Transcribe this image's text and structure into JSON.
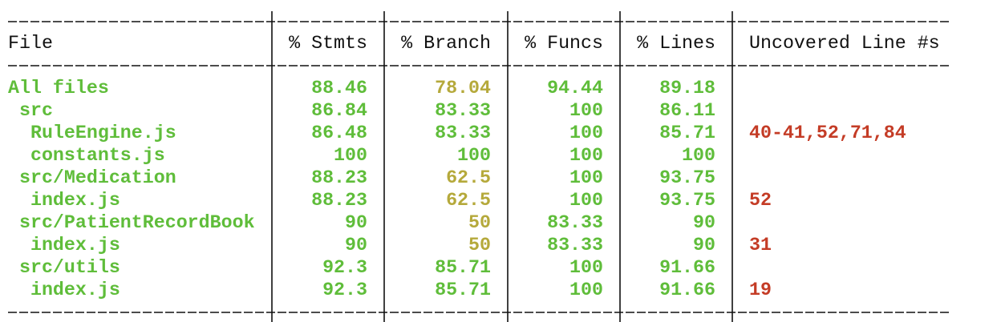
{
  "table": {
    "header": [
      "File",
      "% Stmts",
      "% Branch",
      "% Funcs",
      "% Lines",
      "Uncovered Line #s"
    ],
    "rows": [
      [
        "All files",
        88.46,
        78.04,
        94.44,
        89.18
      ],
      [
        " src",
        86.84,
        83.33,
        100,
        86.11
      ],
      [
        "  RuleEngine.js",
        86.48,
        83.33,
        100,
        85.71,
        "40-41,52,71,84"
      ],
      [
        "  constants.js",
        100,
        100,
        100,
        100
      ],
      [
        " src/Medication",
        88.23,
        62.5,
        100,
        93.75
      ],
      [
        "  index.js",
        88.23,
        62.5,
        100,
        93.75,
        "52"
      ],
      [
        " src/PatientRecordBook",
        90,
        50,
        83.33,
        90
      ],
      [
        "  index.js",
        90,
        50,
        83.33,
        90,
        "31"
      ],
      [
        " src/utils",
        92.3,
        85.71,
        100,
        91.66
      ],
      [
        "  index.js",
        92.3,
        85.71,
        100,
        91.66,
        "19"
      ]
    ]
  }
}
